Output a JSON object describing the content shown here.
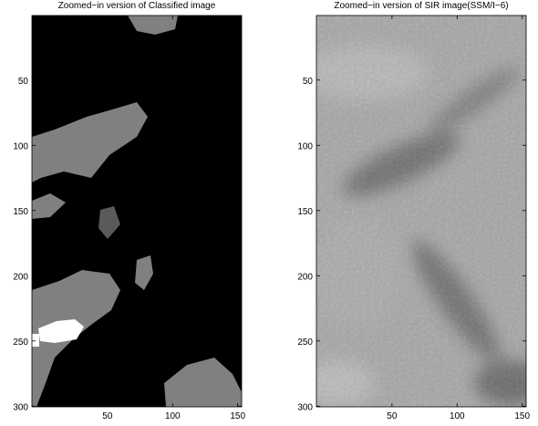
{
  "chart_data": [
    {
      "type": "image",
      "title": "Zoomed−in version of Classified image",
      "xlim": [
        -8,
        153
      ],
      "ylim": [
        0.5,
        300.5
      ],
      "yreverse": true,
      "xticks": [
        50,
        100,
        150
      ],
      "yticks": [
        50,
        100,
        150,
        200,
        250,
        300
      ]
    },
    {
      "type": "image",
      "title": "Zoomed−in version of SIR image(SSM/I−6)",
      "xlim": [
        -8,
        153
      ],
      "ylim": [
        0.5,
        300.5
      ],
      "yreverse": true,
      "xticks": [
        50,
        100,
        150
      ],
      "yticks": [
        50,
        100,
        150,
        200,
        250,
        300
      ]
    }
  ]
}
